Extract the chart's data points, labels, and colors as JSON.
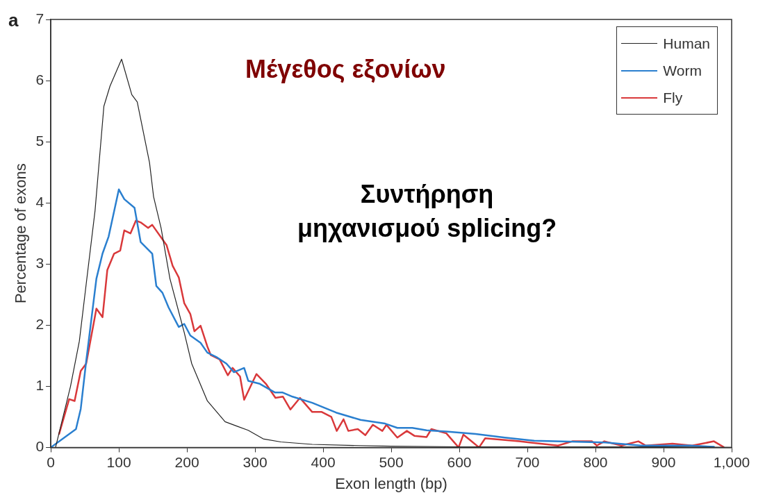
{
  "chart_data": {
    "type": "line",
    "xlabel": "Exon length (bp)",
    "ylabel": "Percentage of exons",
    "annotations": [
      "a",
      "Μέγεθος εξονίων",
      "Συντήρηση\nμηχανισμού splicing?"
    ],
    "xlim": [
      0,
      1000
    ],
    "ylim": [
      0,
      7
    ],
    "xticks": [
      0,
      100,
      200,
      300,
      400,
      500,
      600,
      700,
      800,
      900,
      {
        "value": 1000,
        "label": "1,000"
      }
    ],
    "yticks": [
      0,
      1,
      2,
      3,
      4,
      5,
      6,
      7
    ],
    "grid": false,
    "legend": "top right",
    "marker": "none",
    "line_style": "solid",
    "series": [
      {
        "name": "Human",
        "color": "#222222",
        "x": [
          7,
          29,
          42,
          52,
          65,
          78,
          87,
          104,
          119,
          127,
          145,
          151,
          162,
          175,
          196,
          207,
          230,
          256,
          273,
          290,
          312,
          338,
          384,
          455,
          500,
          600,
          700,
          800,
          900,
          1000
        ],
        "values": [
          0,
          1.0,
          1.74,
          2.67,
          3.87,
          5.58,
          5.91,
          6.35,
          5.77,
          5.65,
          4.66,
          4.1,
          3.59,
          2.76,
          1.88,
          1.37,
          0.76,
          0.42,
          0.35,
          0.28,
          0.14,
          0.09,
          0.05,
          0.03,
          0.02,
          0.01,
          0.01,
          0.01,
          0.01,
          0
        ]
      },
      {
        "name": "Worm",
        "color": "#2a7fcf",
        "x": [
          0,
          37,
          44,
          52,
          67,
          76,
          85,
          100,
          108,
          123,
          132,
          149,
          155,
          164,
          173,
          188,
          196,
          205,
          220,
          230,
          243,
          258,
          269,
          284,
          290,
          307,
          329,
          340,
          355,
          384,
          419,
          455,
          491,
          509,
          531,
          552,
          581,
          624,
          667,
          710,
          782,
          814,
          867,
          939,
          975
        ],
        "values": [
          0,
          0.3,
          0.63,
          1.41,
          2.76,
          3.17,
          3.45,
          4.22,
          4.06,
          3.92,
          3.36,
          3.17,
          2.64,
          2.53,
          2.29,
          1.97,
          2.02,
          1.83,
          1.71,
          1.55,
          1.48,
          1.37,
          1.23,
          1.3,
          1.09,
          1.04,
          0.9,
          0.9,
          0.83,
          0.73,
          0.57,
          0.45,
          0.39,
          0.32,
          0.32,
          0.28,
          0.26,
          0.22,
          0.16,
          0.11,
          0.09,
          0.08,
          0.03,
          0.03,
          0.01
        ]
      },
      {
        "name": "Fly",
        "color": "#d9383a",
        "x": [
          12,
          27,
          35,
          44,
          52,
          67,
          76,
          83,
          93,
          102,
          108,
          117,
          125,
          132,
          143,
          149,
          170,
          179,
          188,
          196,
          205,
          211,
          220,
          230,
          235,
          248,
          260,
          267,
          278,
          284,
          302,
          316,
          330,
          341,
          352,
          366,
          384,
          398,
          412,
          420,
          430,
          437,
          451,
          462,
          473,
          487,
          493,
          509,
          523,
          534,
          552,
          559,
          581,
          599,
          606,
          617,
          629,
          638,
          688,
          745,
          766,
          795,
          802,
          813,
          838,
          863,
          874,
          913,
          942,
          974,
          989
        ],
        "values": [
          0.21,
          0.79,
          0.76,
          1.25,
          1.37,
          2.27,
          2.13,
          2.9,
          3.17,
          3.22,
          3.55,
          3.5,
          3.71,
          3.68,
          3.59,
          3.64,
          3.31,
          2.97,
          2.78,
          2.36,
          2.18,
          1.9,
          1.99,
          1.65,
          1.51,
          1.44,
          1.18,
          1.3,
          1.16,
          0.78,
          1.2,
          1.04,
          0.81,
          0.83,
          0.62,
          0.81,
          0.58,
          0.58,
          0.5,
          0.27,
          0.46,
          0.27,
          0.3,
          0.2,
          0.37,
          0.27,
          0.37,
          0.16,
          0.27,
          0.19,
          0.17,
          0.3,
          0.23,
          0.0,
          0.21,
          0.11,
          0.0,
          0.15,
          0.1,
          0.03,
          0.1,
          0.1,
          0.03,
          0.1,
          0.03,
          0.1,
          0.03,
          0.06,
          0.03,
          0.1,
          0.0
        ]
      }
    ]
  }
}
